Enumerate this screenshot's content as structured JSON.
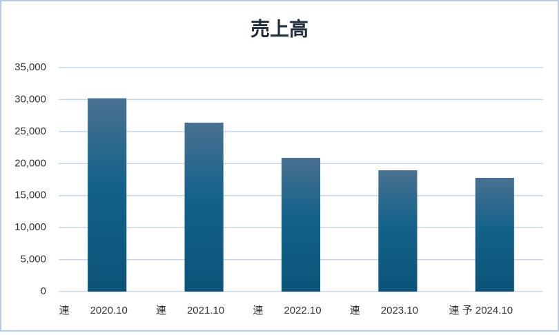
{
  "chart_data": {
    "type": "bar",
    "title": "売上高",
    "categories": [
      "連　　2020.10",
      "連　　2021.10",
      "連　　2022.10",
      "連　　2023.10",
      "連 予 2024.10"
    ],
    "values": [
      30200,
      26400,
      20900,
      18950,
      17770
    ],
    "color": "#13628a",
    "ylim": [
      0,
      35000
    ],
    "yticks": [
      0,
      {
        "value": 5000,
        "label": "5,000"
      },
      {
        "value": 10000,
        "label": "10,000"
      },
      {
        "value": 15000,
        "label": "15,000"
      },
      {
        "value": 20000,
        "label": "20,000"
      },
      {
        "value": 25000,
        "label": "25,000"
      },
      {
        "value": 30000,
        "label": "30,000"
      },
      {
        "value": 35000,
        "label": "35,000"
      }
    ],
    "grid": true
  }
}
